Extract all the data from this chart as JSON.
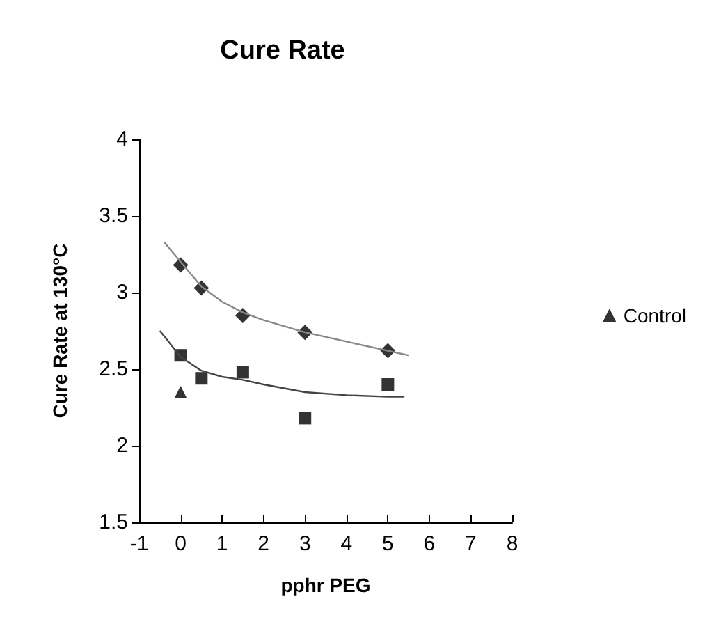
{
  "chart_data": {
    "type": "scatter",
    "title": "Cure Rate",
    "xlabel": "pphr PEG",
    "ylabel": "Cure Rate at 130°C",
    "xlim": [
      -1,
      8
    ],
    "xticks": [
      -1,
      0,
      1,
      2,
      3,
      4,
      5,
      6,
      7,
      8
    ],
    "ylim": [
      1.5,
      4
    ],
    "yticks": [
      1.5,
      2,
      2.5,
      3,
      3.5,
      4
    ],
    "grid": false,
    "legend": "right",
    "series": [
      {
        "color": "#000000",
        "marker": "square",
        "x": [
          0,
          0.5,
          1.5,
          3,
          5
        ],
        "values": [
          2.59,
          2.44,
          2.48,
          2.18,
          2.4
        ]
      },
      {
        "color": "#000000",
        "marker": "diamond",
        "x": [
          0,
          0.5,
          1.5,
          3,
          5
        ],
        "values": [
          3.18,
          3.03,
          2.85,
          2.74,
          2.62
        ]
      },
      {
        "name": "Control",
        "color": "#000000",
        "marker": "triangle",
        "x": [
          0
        ],
        "values": [
          2.35
        ]
      },
      {
        "type": "line",
        "color": "#888888",
        "marker": "none",
        "x": [
          -0.4,
          0,
          0.5,
          1,
          1.5,
          2,
          3,
          4,
          5,
          5.5
        ],
        "values": [
          3.33,
          3.2,
          3.04,
          2.94,
          2.87,
          2.82,
          2.74,
          2.68,
          2.62,
          2.59
        ]
      },
      {
        "type": "line",
        "color": "#444444",
        "marker": "none",
        "x": [
          -0.5,
          0,
          0.5,
          1,
          1.5,
          2,
          3,
          4,
          5,
          5.4
        ],
        "values": [
          2.75,
          2.58,
          2.49,
          2.45,
          2.43,
          2.4,
          2.35,
          2.33,
          2.32,
          2.32
        ]
      }
    ]
  }
}
